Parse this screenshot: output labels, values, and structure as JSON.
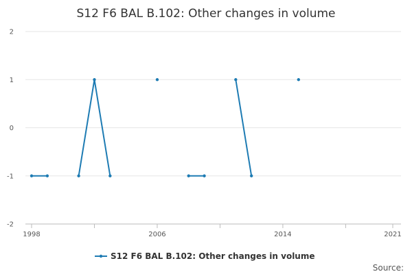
{
  "chart_data": {
    "type": "line",
    "title": "S12 F6 BAL B.102: Other changes in volume",
    "xlabel": "",
    "ylabel": "",
    "xlim": [
      1998,
      2021
    ],
    "ylim": [
      -2,
      2
    ],
    "x_ticks": [
      1998,
      2006,
      2014,
      2021
    ],
    "y_ticks": [
      2,
      1,
      0,
      -1,
      -2
    ],
    "grid": true,
    "legend_position": "bottom-center",
    "series": [
      {
        "name": "S12 F6 BAL B.102: Other changes in volume",
        "color": "#1d7bb3",
        "points": [
          {
            "x": 1998,
            "y": -1
          },
          {
            "x": 1999,
            "y": -1
          },
          {
            "x": 2000,
            "y": null
          },
          {
            "x": 2001,
            "y": -1
          },
          {
            "x": 2002,
            "y": 1
          },
          {
            "x": 2003,
            "y": -1
          },
          {
            "x": 2004,
            "y": null
          },
          {
            "x": 2005,
            "y": null
          },
          {
            "x": 2006,
            "y": 1
          },
          {
            "x": 2007,
            "y": null
          },
          {
            "x": 2008,
            "y": -1
          },
          {
            "x": 2009,
            "y": -1
          },
          {
            "x": 2010,
            "y": null
          },
          {
            "x": 2011,
            "y": 1
          },
          {
            "x": 2012,
            "y": -1
          },
          {
            "x": 2013,
            "y": null
          },
          {
            "x": 2014,
            "y": null
          },
          {
            "x": 2015,
            "y": 1
          }
        ]
      }
    ],
    "source_label": "Source:"
  }
}
